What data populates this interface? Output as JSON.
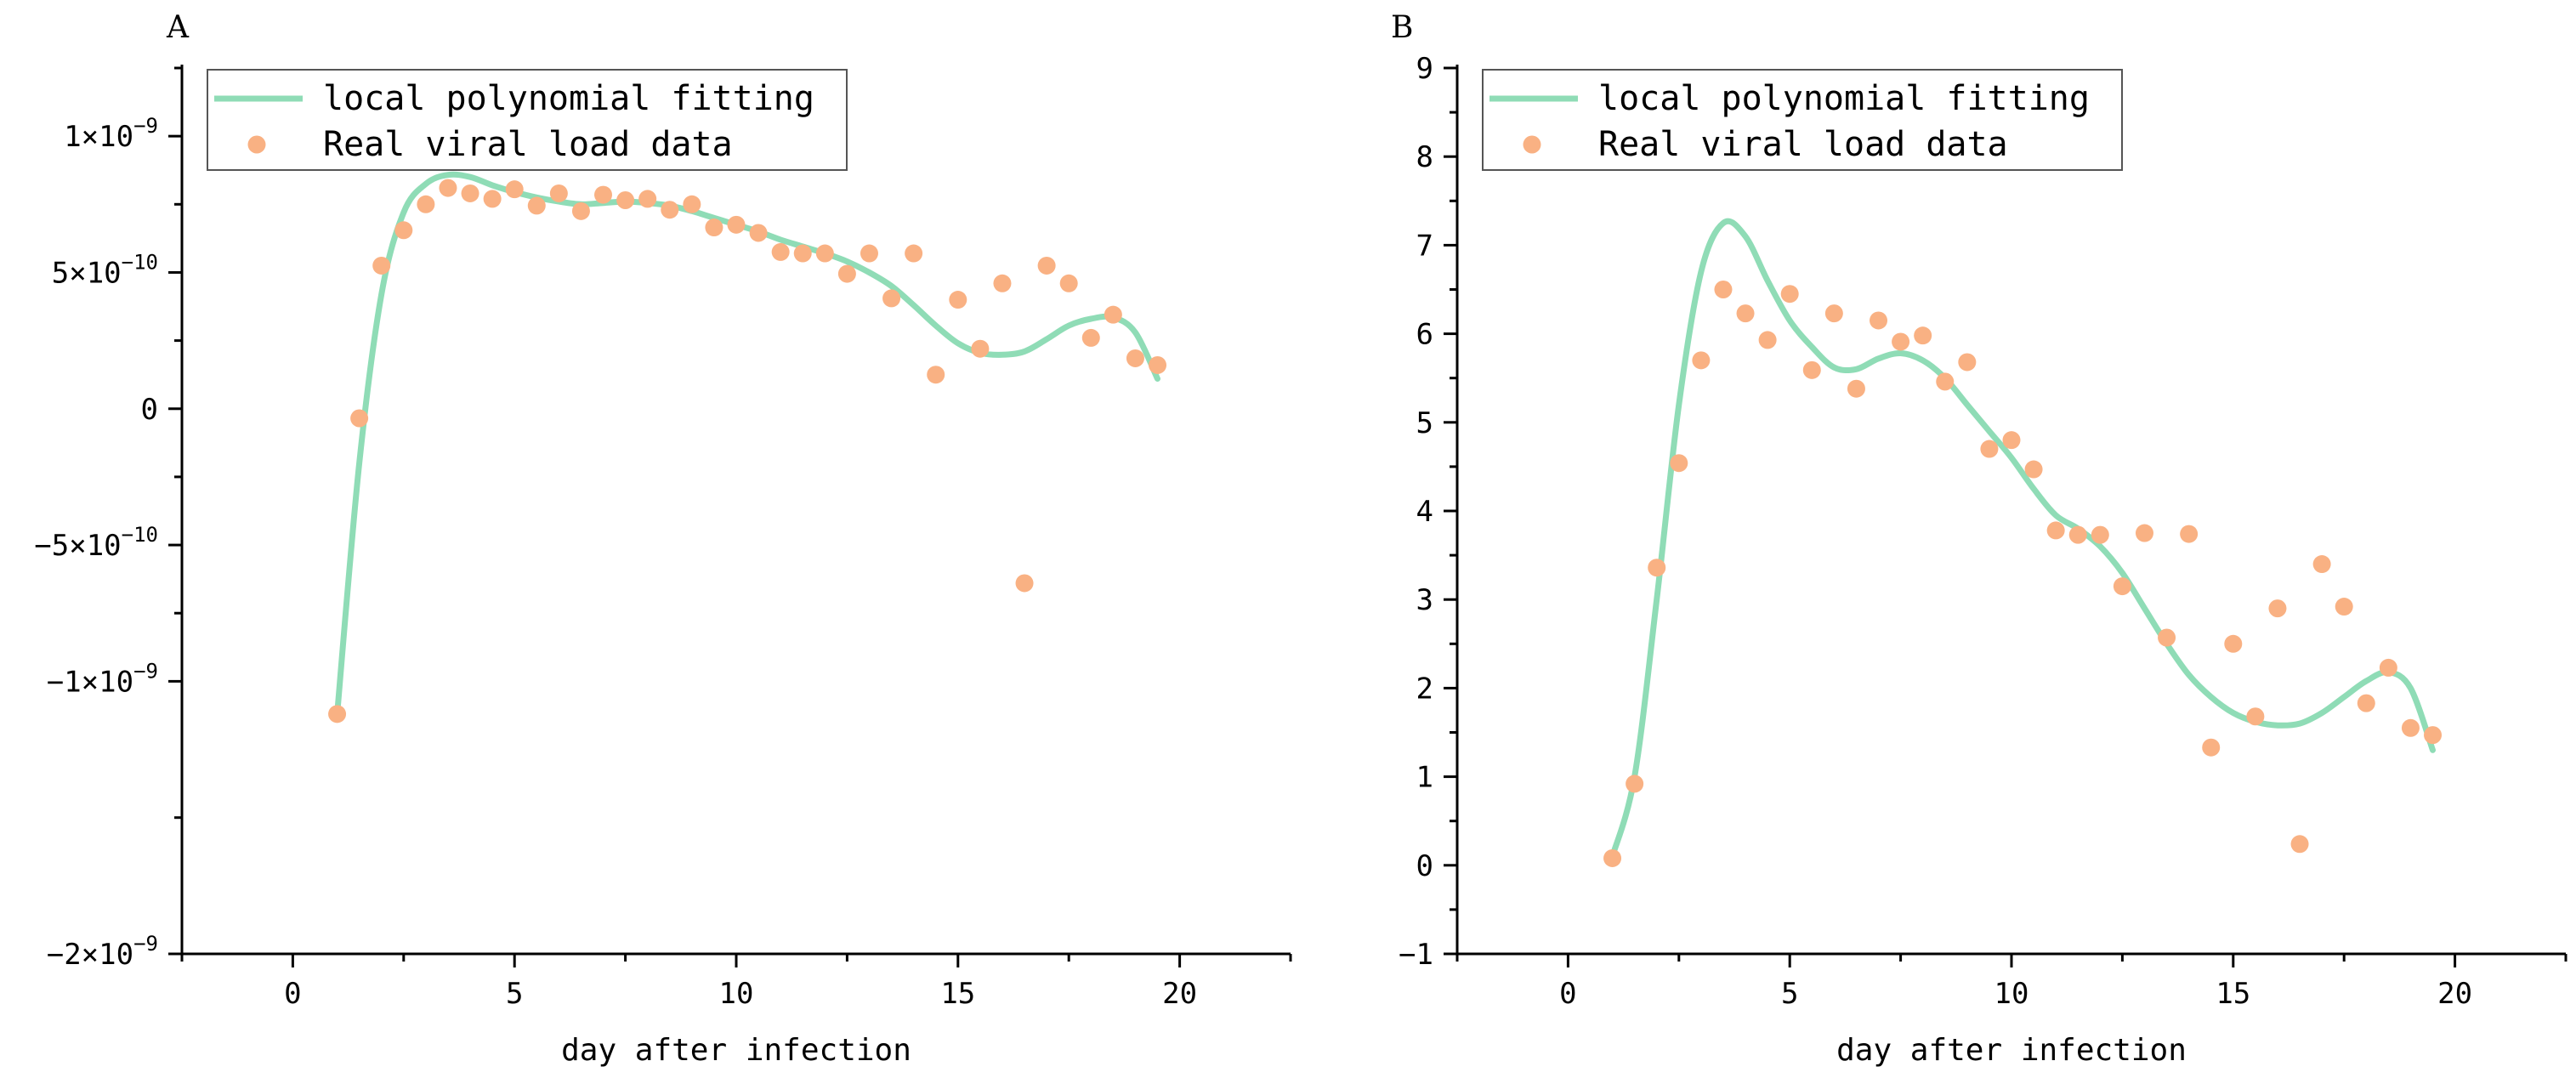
{
  "chart_data": [
    {
      "panel_label": "A",
      "type": "line+scatter",
      "xlabel": "day after infection",
      "xlim": [
        -2.5,
        22.5
      ],
      "xticks": [
        0,
        5,
        10,
        15,
        20
      ],
      "xtick_labels": [
        "0",
        "5",
        "10",
        "15",
        "20"
      ],
      "ylim": [
        -2e-09,
        1.25e-09
      ],
      "yticks": [
        -2e-09,
        -1e-09,
        -5e-10,
        0,
        5e-10,
        1e-09
      ],
      "ytick_labels": [
        {
          "mant": "−2×10",
          "exp": "−9"
        },
        {
          "mant": "−1×10",
          "exp": "−9"
        },
        {
          "mant": "−5×10",
          "exp": "−10"
        },
        {
          "mant": "0",
          "exp": ""
        },
        {
          "mant": "5×10",
          "exp": "−10"
        },
        {
          "mant": "1×10",
          "exp": "−9"
        }
      ],
      "legend": {
        "position": "top-left",
        "entries": [
          "local polynomial fitting",
          "Real viral load data"
        ]
      },
      "series": [
        {
          "name": "local polynomial fitting",
          "kind": "line",
          "color": "#8fdcb6",
          "x": [
            1.0,
            1.5,
            2.0,
            2.5,
            3.0,
            3.5,
            4.0,
            4.5,
            5.0,
            5.5,
            6.0,
            6.5,
            7.0,
            7.5,
            8.0,
            8.5,
            9.0,
            9.5,
            10.0,
            10.5,
            11.0,
            11.5,
            12.0,
            12.5,
            13.0,
            13.5,
            14.0,
            14.5,
            15.0,
            15.5,
            16.0,
            16.5,
            17.0,
            17.5,
            18.0,
            18.5,
            19.0,
            19.5
          ],
          "y": [
            -1.12e-09,
            -2e-10,
            4.2e-10,
            7.2e-10,
            8.25e-10,
            8.58e-10,
            8.5e-10,
            8.2e-10,
            7.95e-10,
            7.75e-10,
            7.6e-10,
            7.5e-10,
            7.55e-10,
            7.6e-10,
            7.55e-10,
            7.45e-10,
            7.25e-10,
            7e-10,
            6.75e-10,
            6.5e-10,
            6.2e-10,
            5.95e-10,
            5.7e-10,
            5.4e-10,
            5e-10,
            4.5e-10,
            3.8e-10,
            3.05e-10,
            2.4e-10,
            2.05e-10,
            1.98e-10,
            2.1e-10,
            2.55e-10,
            3.05e-10,
            3.3e-10,
            3.35e-10,
            2.8e-10,
            1.1e-10
          ]
        },
        {
          "name": "Real viral load data",
          "kind": "scatter",
          "color": "#f9b183",
          "x": [
            1.0,
            1.5,
            2.0,
            2.5,
            3.0,
            3.5,
            4.0,
            4.5,
            5.0,
            5.5,
            6.0,
            6.5,
            7.0,
            7.5,
            8.0,
            8.5,
            9.0,
            9.5,
            10.0,
            10.5,
            11.0,
            11.5,
            12.0,
            12.5,
            13.0,
            13.5,
            14.0,
            14.5,
            15.0,
            15.5,
            16.0,
            16.5,
            17.0,
            17.5,
            18.0,
            18.5,
            19.0,
            19.5
          ],
          "y": [
            -1.12e-09,
            -3.5e-11,
            5.25e-10,
            6.55e-10,
            7.5e-10,
            8.1e-10,
            7.9e-10,
            7.7e-10,
            8.05e-10,
            7.45e-10,
            7.9e-10,
            7.25e-10,
            7.85e-10,
            7.65e-10,
            7.7e-10,
            7.3e-10,
            7.5e-10,
            6.65e-10,
            6.75e-10,
            6.45e-10,
            5.75e-10,
            5.7e-10,
            5.7e-10,
            4.95e-10,
            5.7e-10,
            4.05e-10,
            5.7e-10,
            1.25e-10,
            4e-10,
            2.2e-10,
            4.6e-10,
            -6.4e-10,
            5.25e-10,
            4.6e-10,
            2.6e-10,
            3.45e-10,
            1.85e-10,
            1.6e-10
          ]
        }
      ]
    },
    {
      "panel_label": "B",
      "type": "line+scatter",
      "xlabel": "day after infection",
      "xlim": [
        -2.5,
        22.5
      ],
      "xticks": [
        0,
        5,
        10,
        15,
        20
      ],
      "xtick_labels": [
        "0",
        "5",
        "10",
        "15",
        "20"
      ],
      "ylim": [
        -1,
        9
      ],
      "yticks": [
        -1,
        0,
        1,
        2,
        3,
        4,
        5,
        6,
        7,
        8,
        9
      ],
      "ytick_labels": [
        {
          "mant": "−1",
          "exp": ""
        },
        {
          "mant": "0",
          "exp": ""
        },
        {
          "mant": "1",
          "exp": ""
        },
        {
          "mant": "2",
          "exp": ""
        },
        {
          "mant": "3",
          "exp": ""
        },
        {
          "mant": "4",
          "exp": ""
        },
        {
          "mant": "5",
          "exp": ""
        },
        {
          "mant": "6",
          "exp": ""
        },
        {
          "mant": "7",
          "exp": ""
        },
        {
          "mant": "8",
          "exp": ""
        },
        {
          "mant": "9",
          "exp": ""
        }
      ],
      "legend": {
        "position": "top-left",
        "entries": [
          "local polynomial fitting",
          "Real viral load data"
        ]
      },
      "series": [
        {
          "name": "local polynomial fitting",
          "kind": "line",
          "color": "#8fdcb6",
          "x": [
            1.0,
            1.5,
            2.0,
            2.5,
            3.0,
            3.5,
            4.0,
            4.5,
            5.0,
            5.5,
            6.0,
            6.5,
            7.0,
            7.5,
            8.0,
            8.5,
            9.0,
            9.5,
            10.0,
            10.5,
            11.0,
            11.5,
            12.0,
            12.5,
            13.0,
            13.5,
            14.0,
            14.5,
            15.0,
            15.5,
            16.0,
            16.5,
            17.0,
            17.5,
            18.0,
            18.5,
            19.0,
            19.5
          ],
          "y": [
            0.1,
            1.0,
            3.0,
            5.2,
            6.7,
            7.25,
            7.1,
            6.6,
            6.15,
            5.85,
            5.62,
            5.6,
            5.72,
            5.78,
            5.7,
            5.5,
            5.2,
            4.9,
            4.6,
            4.25,
            3.95,
            3.8,
            3.6,
            3.3,
            2.9,
            2.5,
            2.15,
            1.9,
            1.72,
            1.62,
            1.58,
            1.6,
            1.72,
            1.9,
            2.08,
            2.18,
            2.0,
            1.3
          ]
        },
        {
          "name": "Real viral load data",
          "kind": "scatter",
          "color": "#f9b183",
          "x": [
            1.0,
            1.5,
            2.0,
            2.5,
            3.0,
            3.5,
            4.0,
            4.5,
            5.0,
            5.5,
            6.0,
            6.5,
            7.0,
            7.5,
            8.0,
            8.5,
            9.0,
            9.5,
            10.0,
            10.5,
            11.0,
            11.5,
            12.0,
            12.5,
            13.0,
            13.5,
            14.0,
            14.5,
            15.0,
            15.5,
            16.0,
            16.5,
            17.0,
            17.5,
            18.0,
            18.5,
            19.0,
            19.5
          ],
          "y": [
            0.08,
            0.92,
            3.36,
            4.54,
            5.7,
            6.5,
            6.23,
            5.93,
            6.45,
            5.59,
            6.23,
            5.38,
            6.15,
            5.91,
            5.98,
            5.46,
            5.68,
            4.7,
            4.8,
            4.47,
            3.78,
            3.73,
            3.73,
            3.15,
            3.75,
            2.57,
            3.74,
            1.33,
            2.5,
            1.68,
            2.9,
            0.24,
            3.4,
            2.92,
            1.83,
            2.23,
            1.55,
            1.47
          ]
        }
      ]
    }
  ]
}
